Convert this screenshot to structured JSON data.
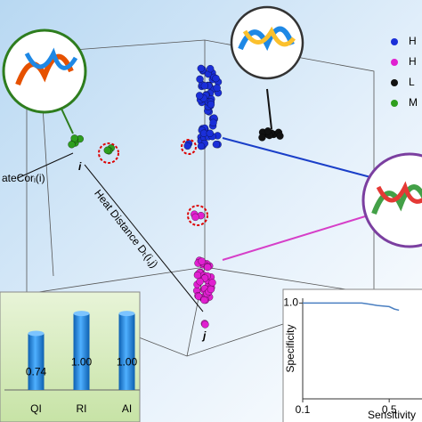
{
  "figure": {
    "legend": [
      "H",
      "H",
      "L",
      "M"
    ],
    "annotations": {
      "i": "i",
      "j": "j",
      "cor": "ateCorᵢ(i)",
      "heat": "Heat Distance Dₜ(i,j)"
    }
  },
  "chart_data": [
    {
      "type": "bar",
      "categories": [
        "QI",
        "RI",
        "AI"
      ],
      "values": [
        0.74,
        1.0,
        1.0
      ],
      "value_labels": [
        "0.74",
        "1.00",
        "1.00"
      ],
      "color": "#1e88e5",
      "ylim": [
        0,
        1.2
      ]
    },
    {
      "type": "line",
      "xlabel": "Sensitivity",
      "ylabel": "Specificity",
      "log_x": true,
      "x": [
        0.1,
        0.2,
        0.3,
        0.35,
        0.4,
        0.5,
        0.55,
        0.6
      ],
      "series": [
        {
          "color": "#4a7fc1",
          "values": [
            1.0,
            1.0,
            1.0,
            0.995,
            0.99,
            0.985,
            0.975,
            0.97
          ]
        }
      ],
      "xlim": [
        0.1,
        1.0
      ],
      "ylim": [
        0.6,
        1.02
      ],
      "xticks": [
        0.1,
        0.5
      ],
      "yticks": [
        {
          "value": 1.0,
          "label": "1.0"
        }
      ]
    }
  ]
}
